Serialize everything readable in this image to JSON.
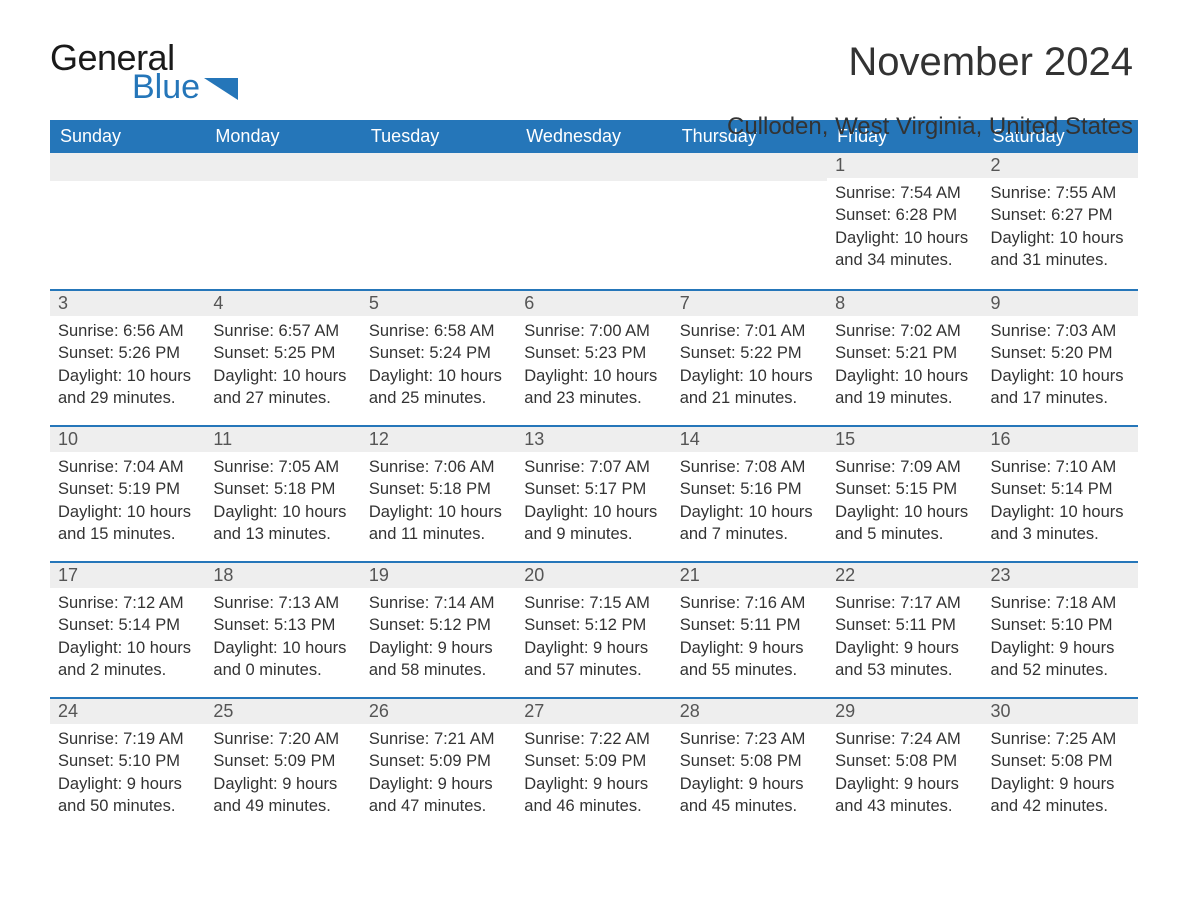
{
  "logo": {
    "word1": "General",
    "word2": "Blue",
    "flag_color": "#2576b9"
  },
  "title": "November 2024",
  "location": "Culloden, West Virginia, United States",
  "colors": {
    "header_bg": "#2576b9",
    "header_text": "#ffffff",
    "daynum_bg": "#eeeeee",
    "rule": "#2576b9"
  },
  "day_names": [
    "Sunday",
    "Monday",
    "Tuesday",
    "Wednesday",
    "Thursday",
    "Friday",
    "Saturday"
  ],
  "weeks": [
    [
      null,
      null,
      null,
      null,
      null,
      {
        "n": "1",
        "sunrise": "7:54 AM",
        "sunset": "6:28 PM",
        "dlh": "10",
        "dlm": "34"
      },
      {
        "n": "2",
        "sunrise": "7:55 AM",
        "sunset": "6:27 PM",
        "dlh": "10",
        "dlm": "31"
      }
    ],
    [
      {
        "n": "3",
        "sunrise": "6:56 AM",
        "sunset": "5:26 PM",
        "dlh": "10",
        "dlm": "29"
      },
      {
        "n": "4",
        "sunrise": "6:57 AM",
        "sunset": "5:25 PM",
        "dlh": "10",
        "dlm": "27"
      },
      {
        "n": "5",
        "sunrise": "6:58 AM",
        "sunset": "5:24 PM",
        "dlh": "10",
        "dlm": "25"
      },
      {
        "n": "6",
        "sunrise": "7:00 AM",
        "sunset": "5:23 PM",
        "dlh": "10",
        "dlm": "23"
      },
      {
        "n": "7",
        "sunrise": "7:01 AM",
        "sunset": "5:22 PM",
        "dlh": "10",
        "dlm": "21"
      },
      {
        "n": "8",
        "sunrise": "7:02 AM",
        "sunset": "5:21 PM",
        "dlh": "10",
        "dlm": "19"
      },
      {
        "n": "9",
        "sunrise": "7:03 AM",
        "sunset": "5:20 PM",
        "dlh": "10",
        "dlm": "17"
      }
    ],
    [
      {
        "n": "10",
        "sunrise": "7:04 AM",
        "sunset": "5:19 PM",
        "dlh": "10",
        "dlm": "15"
      },
      {
        "n": "11",
        "sunrise": "7:05 AM",
        "sunset": "5:18 PM",
        "dlh": "10",
        "dlm": "13"
      },
      {
        "n": "12",
        "sunrise": "7:06 AM",
        "sunset": "5:18 PM",
        "dlh": "10",
        "dlm": "11"
      },
      {
        "n": "13",
        "sunrise": "7:07 AM",
        "sunset": "5:17 PM",
        "dlh": "10",
        "dlm": "9"
      },
      {
        "n": "14",
        "sunrise": "7:08 AM",
        "sunset": "5:16 PM",
        "dlh": "10",
        "dlm": "7"
      },
      {
        "n": "15",
        "sunrise": "7:09 AM",
        "sunset": "5:15 PM",
        "dlh": "10",
        "dlm": "5"
      },
      {
        "n": "16",
        "sunrise": "7:10 AM",
        "sunset": "5:14 PM",
        "dlh": "10",
        "dlm": "3"
      }
    ],
    [
      {
        "n": "17",
        "sunrise": "7:12 AM",
        "sunset": "5:14 PM",
        "dlh": "10",
        "dlm": "2"
      },
      {
        "n": "18",
        "sunrise": "7:13 AM",
        "sunset": "5:13 PM",
        "dlh": "10",
        "dlm": "0"
      },
      {
        "n": "19",
        "sunrise": "7:14 AM",
        "sunset": "5:12 PM",
        "dlh": "9",
        "dlm": "58"
      },
      {
        "n": "20",
        "sunrise": "7:15 AM",
        "sunset": "5:12 PM",
        "dlh": "9",
        "dlm": "57"
      },
      {
        "n": "21",
        "sunrise": "7:16 AM",
        "sunset": "5:11 PM",
        "dlh": "9",
        "dlm": "55"
      },
      {
        "n": "22",
        "sunrise": "7:17 AM",
        "sunset": "5:11 PM",
        "dlh": "9",
        "dlm": "53"
      },
      {
        "n": "23",
        "sunrise": "7:18 AM",
        "sunset": "5:10 PM",
        "dlh": "9",
        "dlm": "52"
      }
    ],
    [
      {
        "n": "24",
        "sunrise": "7:19 AM",
        "sunset": "5:10 PM",
        "dlh": "9",
        "dlm": "50"
      },
      {
        "n": "25",
        "sunrise": "7:20 AM",
        "sunset": "5:09 PM",
        "dlh": "9",
        "dlm": "49"
      },
      {
        "n": "26",
        "sunrise": "7:21 AM",
        "sunset": "5:09 PM",
        "dlh": "9",
        "dlm": "47"
      },
      {
        "n": "27",
        "sunrise": "7:22 AM",
        "sunset": "5:09 PM",
        "dlh": "9",
        "dlm": "46"
      },
      {
        "n": "28",
        "sunrise": "7:23 AM",
        "sunset": "5:08 PM",
        "dlh": "9",
        "dlm": "45"
      },
      {
        "n": "29",
        "sunrise": "7:24 AM",
        "sunset": "5:08 PM",
        "dlh": "9",
        "dlm": "43"
      },
      {
        "n": "30",
        "sunrise": "7:25 AM",
        "sunset": "5:08 PM",
        "dlh": "9",
        "dlm": "42"
      }
    ]
  ],
  "labels": {
    "sunrise": "Sunrise: ",
    "sunset": "Sunset: ",
    "daylight": "Daylight: ",
    " hours": " hours",
    "and": "and ",
    " minutes": " minutes."
  }
}
